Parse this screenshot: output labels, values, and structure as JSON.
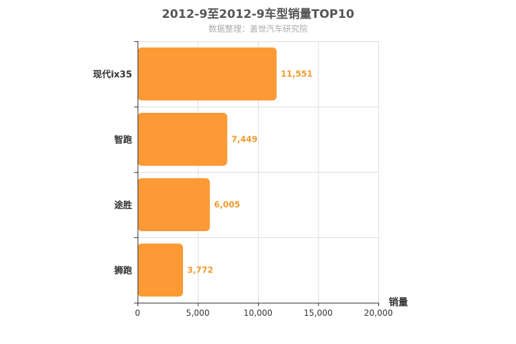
{
  "chart_data": {
    "type": "bar",
    "orientation": "horizontal",
    "title": "2012-9至2012-9车型销量TOP10",
    "subtitle": "数据整理：盖世汽车研究院",
    "categories": [
      "现代ix35",
      "智跑",
      "途胜",
      "狮跑"
    ],
    "values": [
      11551,
      7449,
      6005,
      3772
    ],
    "value_labels": [
      "11,551",
      "7,449",
      "6,005",
      "3,772"
    ],
    "xlabel": "销量",
    "ylabel": "",
    "xlim": [
      0,
      20000
    ],
    "x_ticks": [
      0,
      5000,
      10000,
      15000,
      20000
    ],
    "x_tick_labels": [
      "0",
      "5,000",
      "10,000",
      "15,000",
      "20,000"
    ],
    "grid": true,
    "legend": "none",
    "colors": {
      "bar": "#fe9a35",
      "value_label": "#ef9b30",
      "grid": "#dddddd",
      "axis": "#333333"
    }
  }
}
